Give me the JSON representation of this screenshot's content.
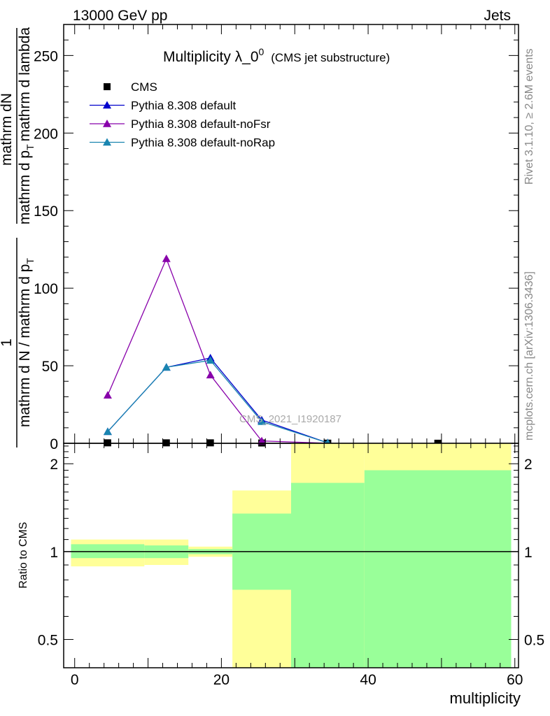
{
  "header": {
    "left": "13000 GeV pp",
    "right": "Jets"
  },
  "side_text": {
    "rivet": "Rivet 3.1.10, ≥ 2.6M events",
    "site": "mcplots.cern.ch [arXiv:1306.3436]"
  },
  "watermark": "CMS_2021_I1920187",
  "chart_data": [
    {
      "type": "line",
      "title": "Multiplicity λ_0",
      "title_sup": "0",
      "title_suffix": "(CMS jet substructure)",
      "ylabel_top": "1",
      "ylabel_left_line1": "mathrm dN",
      "ylabel_left_line2": "mathrm d N / mathrm d p",
      "ylabel_left_sub": "T",
      "ylabel_left_rest": "mathrm d p",
      "ylabel_left_sub2": "T",
      "ylabel_left_tail": "mathrm d lambda",
      "ylim": [
        0,
        270
      ],
      "yticks": [
        0,
        50,
        100,
        150,
        200,
        250
      ],
      "ytick_labels": [
        "0",
        "50",
        "100",
        "150",
        "200",
        "250"
      ],
      "xlim": [
        -1.5,
        60.5
      ],
      "legend_position": "top-left",
      "series": [
        {
          "name": "CMS",
          "color": "#000000",
          "marker": "square",
          "x": [
            4.5,
            12.5,
            18.5,
            25.5,
            34.5,
            49.5
          ],
          "y": [
            0.3,
            0.3,
            0.3,
            0.2,
            0.1,
            0.05
          ]
        },
        {
          "name": "Pythia 8.308 default",
          "color": "#0000cc",
          "marker": "triangle",
          "x": [
            4.5,
            12.5,
            18.5,
            25.5,
            34.5
          ],
          "y": [
            7.5,
            49,
            55,
            15,
            0.3
          ]
        },
        {
          "name": "Pythia 8.308 default-noFsr",
          "color": "#8800aa",
          "marker": "triangle",
          "x": [
            4.5,
            12.5,
            18.5,
            25.5,
            34.5
          ],
          "y": [
            31,
            119,
            44,
            1.5,
            0.05
          ]
        },
        {
          "name": "Pythia 8.308 default-noRap",
          "color": "#1a85b0",
          "marker": "triangle",
          "x": [
            4.5,
            12.5,
            18.5,
            25.5,
            34.5
          ],
          "y": [
            7.5,
            49,
            53.5,
            14,
            0.3
          ]
        }
      ]
    },
    {
      "type": "area",
      "ylabel": "Ratio to CMS",
      "xlabel": "multiplicity",
      "scale": "log",
      "ylim": [
        0.4,
        2.35
      ],
      "yticks": [
        0.5,
        1,
        2
      ],
      "ytick_labels": [
        "0.5",
        "1",
        "2"
      ],
      "xlim": [
        -1.5,
        60.5
      ],
      "xticks": [
        0,
        20,
        40,
        60
      ],
      "xtick_labels": [
        "0",
        "20",
        "40",
        "60"
      ],
      "reference_line": 1,
      "bins": [
        {
          "x0": -0.5,
          "x1": 9.5,
          "green": [
            0.95,
            1.06
          ],
          "yellow": [
            0.89,
            1.1
          ]
        },
        {
          "x0": 9.5,
          "x1": 15.5,
          "green": [
            0.95,
            1.05
          ],
          "yellow": [
            0.9,
            1.1
          ]
        },
        {
          "x0": 15.5,
          "x1": 21.5,
          "green": [
            0.98,
            1.02
          ],
          "yellow": [
            0.96,
            1.04
          ]
        },
        {
          "x0": 21.5,
          "x1": 29.5,
          "green": [
            0.74,
            1.35
          ],
          "yellow": [
            0.4,
            1.62
          ]
        },
        {
          "x0": 29.5,
          "x1": 39.5,
          "green": [
            0.4,
            1.72
          ],
          "yellow": [
            0.4,
            2.35
          ]
        },
        {
          "x0": 39.5,
          "x1": 59.5,
          "green": [
            0.4,
            1.9
          ],
          "yellow": [
            0.4,
            2.35
          ]
        }
      ]
    }
  ]
}
